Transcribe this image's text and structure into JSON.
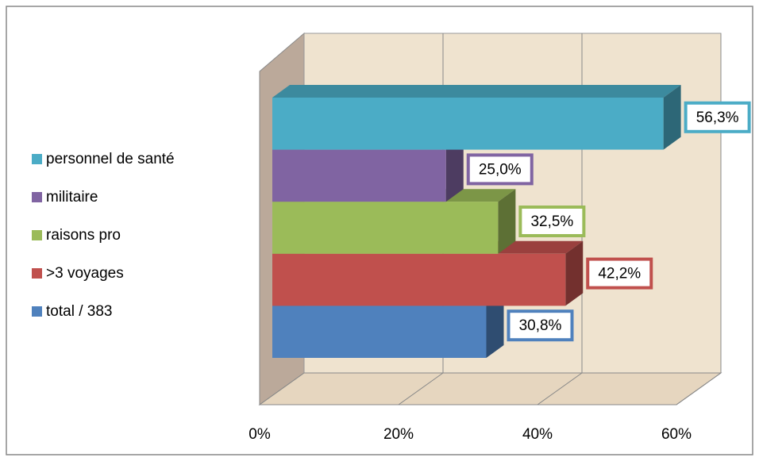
{
  "chart_data": {
    "type": "bar3d-horizontal",
    "series": [
      {
        "name": "personnel de santé",
        "color": "#4bacc6",
        "values": [
          56.3
        ],
        "value_labels": [
          "56,3%"
        ]
      },
      {
        "name": "militaire",
        "color": "#8064a2",
        "values": [
          25.0
        ],
        "value_labels": [
          "25,0%"
        ]
      },
      {
        "name": "raisons pro",
        "color": "#9bbb59",
        "values": [
          32.5
        ],
        "value_labels": [
          "32,5%"
        ]
      },
      {
        "name": ">3 voyages",
        "color": "#c0504d",
        "values": [
          42.2
        ],
        "value_labels": [
          "42,2%"
        ]
      },
      {
        "name": "total / 383",
        "color": "#4f81bd",
        "values": [
          30.8
        ],
        "value_labels": [
          "30,8%"
        ]
      }
    ],
    "xlim": [
      0,
      60
    ],
    "xticks": [
      {
        "value": 0,
        "label": "0%"
      },
      {
        "value": 20,
        "label": "20%"
      },
      {
        "value": 40,
        "label": "40%"
      },
      {
        "value": 60,
        "label": "60%"
      }
    ],
    "grid": true,
    "legend": "left"
  }
}
